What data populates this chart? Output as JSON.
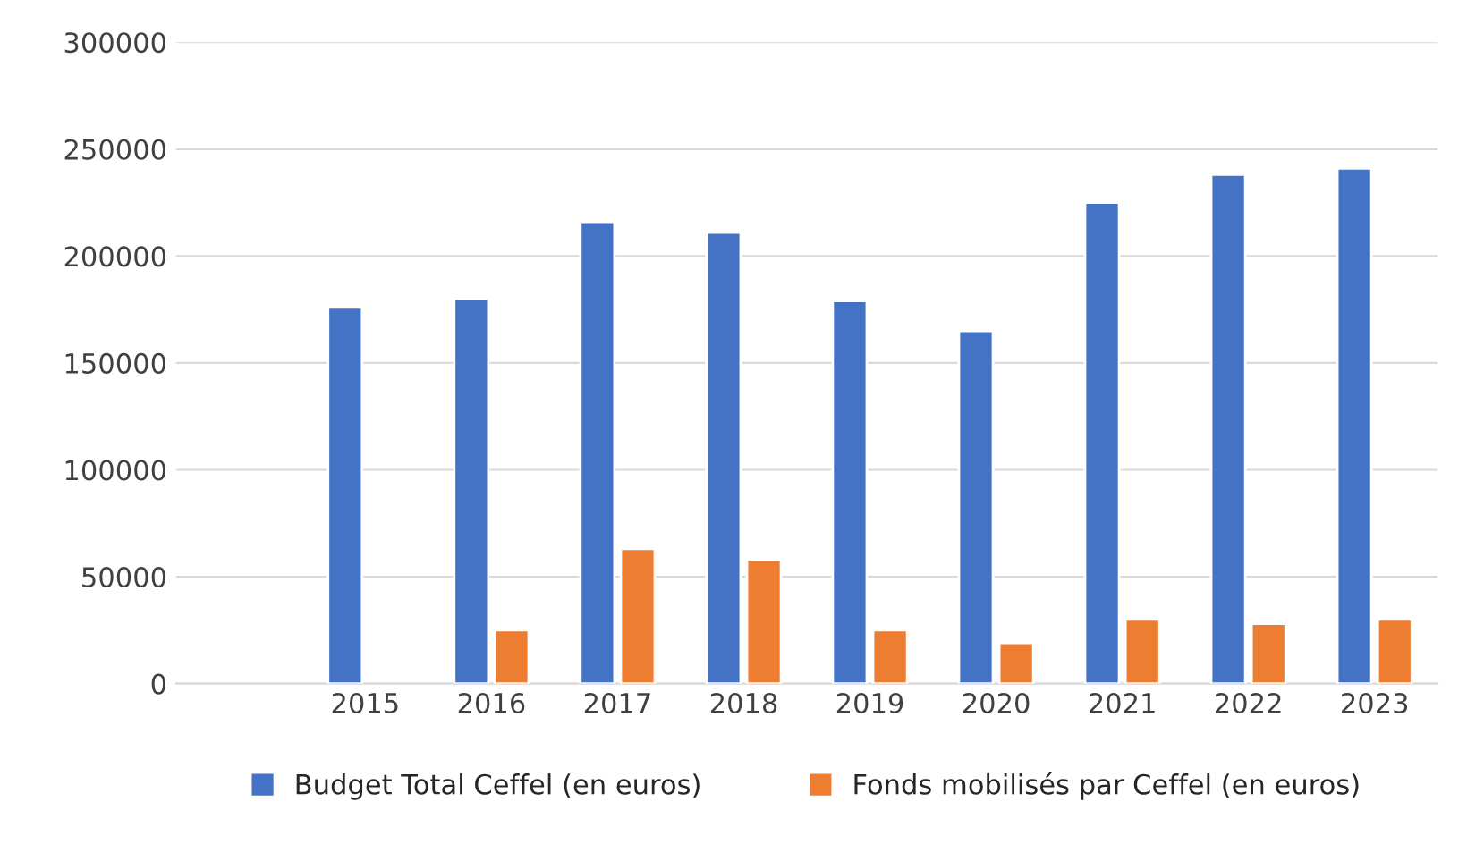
{
  "chart_data": {
    "type": "bar",
    "categories": [
      null,
      "2015",
      "2016",
      "2017",
      "2018",
      "2019",
      "2020",
      "2021",
      "2022",
      "2023"
    ],
    "series": [
      {
        "name": "Budget Total Ceffel (en euros)",
        "color": "#4472c4",
        "values": [
          null,
          176000,
          180000,
          216000,
          211000,
          179000,
          165000,
          225000,
          238000,
          241000
        ]
      },
      {
        "name": "Fonds mobilisés par Ceffel (en euros)",
        "color": "#ed7d31",
        "values": [
          null,
          null,
          25000,
          63000,
          58000,
          25000,
          19000,
          30000,
          28000,
          30000
        ]
      }
    ],
    "ylim": [
      0,
      300000
    ],
    "yticks": [
      0,
      50000,
      100000,
      150000,
      200000,
      250000,
      300000
    ],
    "grid": "y",
    "legend": "bottom"
  }
}
